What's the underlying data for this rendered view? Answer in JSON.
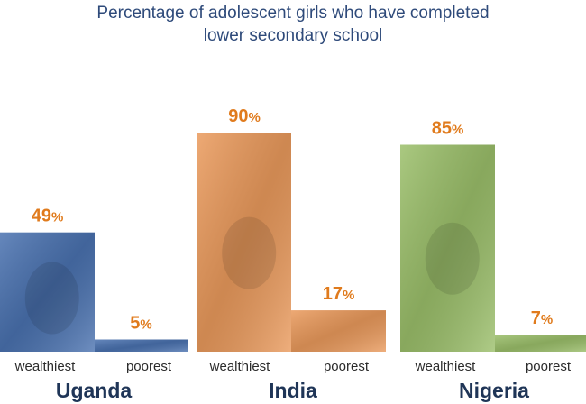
{
  "title_lines": [
    "Percentage of adolescent girls who have completed",
    "lower secondary school"
  ],
  "colors": {
    "uganda": "#4a72b0",
    "india": "#ea9a5c",
    "nigeria": "#9bbf6a",
    "percent_label": "#e07b1d",
    "title": "#2e4a7a",
    "country_label": "#1f3557"
  },
  "chart_data": {
    "type": "bar",
    "title": "Percentage of adolescent girls who have completed lower secondary school",
    "categories": [
      "wealthiest",
      "poorest"
    ],
    "unit": "%",
    "ylim": [
      0,
      100
    ],
    "groups": [
      {
        "name": "Uganda",
        "values": [
          49,
          5
        ],
        "labels": [
          "wealthiest",
          "poorest"
        ]
      },
      {
        "name": "India",
        "values": [
          90,
          17
        ],
        "labels": [
          "wealthiest",
          "poorest"
        ]
      },
      {
        "name": "Nigeria",
        "values": [
          85,
          7
        ],
        "labels": [
          "wealthiest",
          "poorest"
        ]
      }
    ]
  }
}
